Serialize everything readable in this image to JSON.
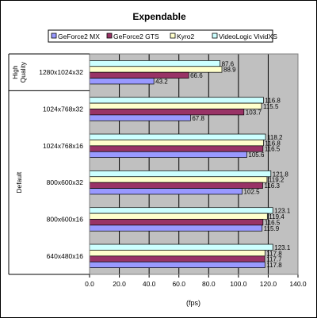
{
  "chart_data": {
    "type": "bar",
    "orientation": "horizontal",
    "title": "Expendable",
    "xlabel": "(fps)",
    "xlim": [
      0,
      140
    ],
    "xticks": [
      "0.0",
      "20.0",
      "40.0",
      "60.0",
      "80.0",
      "100.0",
      "120.0",
      "140.0"
    ],
    "grid": true,
    "legend_position": "top",
    "series": [
      {
        "name": "GeForce2 MX",
        "color": "#9999ff",
        "values": [
          43.2,
          67.8,
          105.6,
          102.5,
          115.9,
          117.8
        ]
      },
      {
        "name": "GeForce2 GTS",
        "color": "#993366",
        "values": [
          66.6,
          103.7,
          116.5,
          116.3,
          116.5,
          117.7
        ]
      },
      {
        "name": "Kyro2",
        "color": "#ffffcc",
        "values": [
          88.9,
          115.5,
          116.8,
          119.2,
          119.4,
          117.8
        ]
      },
      {
        "name": "VideoLogic VividXS",
        "color": "#ccffff",
        "values": [
          87.6,
          116.8,
          118.2,
          121.8,
          123.1,
          123.1
        ]
      }
    ],
    "categories": [
      "1280x1024x32",
      "1024x768x32",
      "1024x768x16",
      "800x600x32",
      "800x600x16",
      "640x480x16"
    ],
    "groups": [
      {
        "label": "High Quality",
        "categories": [
          "1280x1024x32"
        ]
      },
      {
        "label": "Default",
        "categories": [
          "1024x768x32",
          "1024x768x16",
          "800x600x32",
          "800x600x16",
          "640x480x16"
        ]
      }
    ],
    "plot_background": "#c0c0c0"
  }
}
